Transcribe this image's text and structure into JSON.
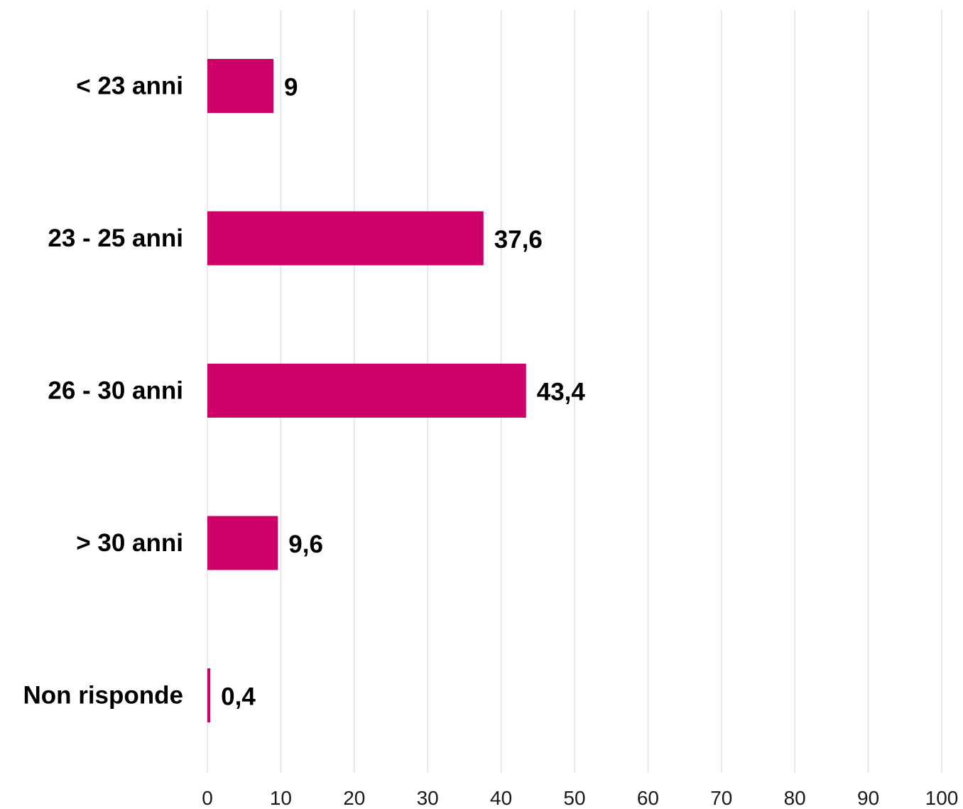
{
  "chart_data": {
    "type": "bar",
    "orientation": "horizontal",
    "categories": [
      "< 23 anni",
      "23 - 25 anni",
      "26 - 30 anni",
      "> 30 anni",
      "Non risponde"
    ],
    "values": [
      9,
      37.6,
      43.4,
      9.6,
      0.4
    ],
    "value_labels": [
      "9",
      "37,6",
      "43,4",
      "9,6",
      "0,4"
    ],
    "x_ticks": [
      "0",
      "10",
      "20",
      "30",
      "40",
      "50",
      "60",
      "70",
      "80",
      "90",
      "100"
    ],
    "xlim": [
      0,
      100
    ],
    "grid": "vertical",
    "legend": "none",
    "bar_color": "#cc0066"
  }
}
